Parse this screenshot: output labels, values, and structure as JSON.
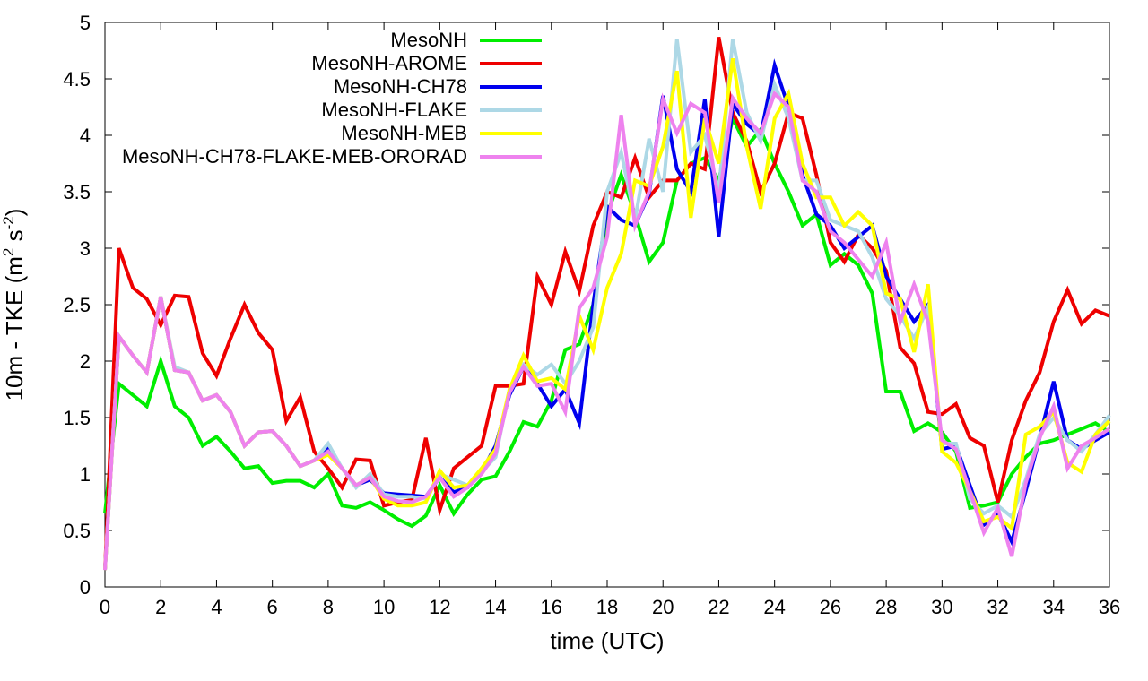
{
  "chart_data": {
    "type": "line",
    "title": "",
    "xlabel": "time (UTC)",
    "ylabel": "10m - TKE (m",
    "ylabel_unit_exp1": "2",
    "ylabel_unit_mid": " s",
    "ylabel_unit_exp2": "-2",
    "ylabel_close": ")",
    "xlim": [
      0,
      36
    ],
    "ylim": [
      0,
      5
    ],
    "xticks": [
      0,
      2,
      4,
      6,
      8,
      10,
      12,
      14,
      16,
      18,
      20,
      22,
      24,
      26,
      28,
      30,
      32,
      34,
      36
    ],
    "xtick_labels": [
      "0",
      "2",
      "4",
      "6",
      "8",
      "10",
      "12",
      "14",
      "16",
      "18",
      "20",
      "22",
      "24",
      "26",
      "28",
      "30",
      "32",
      "34",
      "36"
    ],
    "yticks": [
      0,
      0.5,
      1,
      1.5,
      2,
      2.5,
      3,
      3.5,
      4,
      4.5,
      5
    ],
    "ytick_labels": [
      "0",
      "0.5",
      "1",
      "1.5",
      "2",
      "2.5",
      "3",
      "3.5",
      "4",
      "4.5",
      "5"
    ],
    "grid": false,
    "legend_position": "top-left",
    "x": [
      0,
      0.5,
      1,
      1.5,
      2,
      2.5,
      3,
      3.5,
      4,
      4.5,
      5,
      5.5,
      6,
      6.5,
      7,
      7.5,
      8,
      8.5,
      9,
      9.5,
      10,
      10.5,
      11,
      11.5,
      12,
      12.5,
      13,
      13.5,
      14,
      14.5,
      15,
      15.5,
      16,
      16.5,
      17,
      17.5,
      18,
      18.5,
      19,
      19.5,
      20,
      20.5,
      21,
      21.5,
      22,
      22.5,
      23,
      23.5,
      24,
      24.5,
      25,
      25.5,
      26,
      26.5,
      27,
      27.5,
      28,
      28.5,
      29,
      29.5,
      30,
      30.5,
      31,
      31.5,
      32,
      32.5,
      33,
      33.5,
      34,
      34.5,
      35,
      35.5,
      36
    ],
    "series": [
      {
        "name": "MesoNH",
        "color": "#00ee00",
        "values": [
          0.65,
          1.8,
          1.7,
          1.6,
          2.0,
          1.6,
          1.5,
          1.25,
          1.33,
          1.2,
          1.05,
          1.07,
          0.92,
          0.94,
          0.94,
          0.88,
          1.0,
          0.72,
          0.7,
          0.75,
          0.68,
          0.6,
          0.54,
          0.63,
          0.9,
          0.65,
          0.82,
          0.95,
          0.98,
          1.2,
          1.46,
          1.42,
          1.65,
          2.1,
          2.15,
          2.5,
          3.3,
          3.65,
          3.3,
          2.88,
          3.05,
          3.6,
          3.75,
          3.8,
          3.6,
          4.15,
          3.9,
          4.05,
          3.75,
          3.5,
          3.2,
          3.3,
          2.85,
          2.95,
          2.85,
          2.6,
          1.73,
          1.73,
          1.38,
          1.45,
          1.37,
          1.2,
          0.7,
          0.72,
          0.75,
          1.0,
          1.15,
          1.27,
          1.3,
          1.35,
          1.4,
          1.45,
          1.37
        ]
      },
      {
        "name": "MesoNH-AROME",
        "color": "#ee0000",
        "values": [
          0.15,
          3.0,
          2.65,
          2.55,
          2.32,
          2.58,
          2.57,
          2.07,
          1.87,
          2.2,
          2.5,
          2.25,
          2.1,
          1.47,
          1.68,
          1.2,
          1.05,
          0.88,
          1.13,
          1.12,
          0.72,
          0.75,
          0.77,
          1.32,
          0.68,
          1.05,
          1.15,
          1.25,
          1.78,
          1.78,
          1.8,
          2.75,
          2.5,
          2.97,
          2.62,
          3.2,
          3.5,
          3.45,
          3.8,
          3.45,
          3.6,
          3.6,
          3.75,
          3.7,
          4.87,
          4.2,
          3.95,
          3.5,
          3.75,
          4.2,
          4.15,
          3.65,
          3.05,
          2.88,
          3.12,
          3.0,
          2.8,
          2.12,
          1.98,
          1.55,
          1.53,
          1.62,
          1.32,
          1.25,
          0.75,
          1.3,
          1.65,
          1.9,
          2.35,
          2.63,
          2.33,
          2.45,
          2.4
        ]
      },
      {
        "name": "MesoNH-CH78",
        "color": "#0000ee",
        "values": [
          0.15,
          2.22,
          2.05,
          1.9,
          2.57,
          1.92,
          1.9,
          1.65,
          1.7,
          1.55,
          1.25,
          1.37,
          1.38,
          1.25,
          1.07,
          1.12,
          1.23,
          1.05,
          0.9,
          0.95,
          0.83,
          0.82,
          0.81,
          0.8,
          0.97,
          0.84,
          0.88,
          1.02,
          1.25,
          1.7,
          1.95,
          1.8,
          1.6,
          1.75,
          1.45,
          2.5,
          3.37,
          3.25,
          3.2,
          3.48,
          4.35,
          3.7,
          3.5,
          4.32,
          3.1,
          4.28,
          4.1,
          4.0,
          4.62,
          4.25,
          3.65,
          3.3,
          3.2,
          3.0,
          3.1,
          3.2,
          2.75,
          2.55,
          2.35,
          2.5,
          1.22,
          1.25,
          0.9,
          0.55,
          0.65,
          0.4,
          0.85,
          1.32,
          1.82,
          1.3,
          1.22,
          1.3,
          1.37
        ]
      },
      {
        "name": "MesoNH-FLAKE",
        "color": "#add8e6",
        "values": [
          0.15,
          2.22,
          2.05,
          1.9,
          2.57,
          1.95,
          1.9,
          1.65,
          1.7,
          1.55,
          1.25,
          1.37,
          1.38,
          1.25,
          1.07,
          1.12,
          1.27,
          1.05,
          0.88,
          1.0,
          0.82,
          0.8,
          0.8,
          0.78,
          1.0,
          0.95,
          0.9,
          1.02,
          1.15,
          1.75,
          1.97,
          1.88,
          1.97,
          1.8,
          2.0,
          2.3,
          3.5,
          3.85,
          3.25,
          3.97,
          3.5,
          4.85,
          3.85,
          4.0,
          3.5,
          4.85,
          4.2,
          3.95,
          4.45,
          4.15,
          3.6,
          3.6,
          3.25,
          3.2,
          3.15,
          2.92,
          2.55,
          2.4,
          2.2,
          2.48,
          1.27,
          1.27,
          0.78,
          0.65,
          0.72,
          0.62,
          0.95,
          1.35,
          1.5,
          1.3,
          1.2,
          1.35,
          1.52
        ]
      },
      {
        "name": "MesoNH-MEB",
        "color": "#ffff00",
        "values": [
          0.15,
          2.22,
          2.05,
          1.9,
          2.57,
          1.92,
          1.9,
          1.65,
          1.7,
          1.55,
          1.25,
          1.37,
          1.38,
          1.25,
          1.07,
          1.12,
          1.17,
          1.05,
          0.9,
          0.97,
          0.78,
          0.72,
          0.72,
          0.75,
          1.03,
          0.88,
          0.9,
          1.05,
          1.22,
          1.75,
          2.05,
          1.82,
          1.85,
          1.75,
          2.4,
          2.1,
          2.65,
          2.95,
          3.6,
          3.55,
          3.9,
          4.57,
          3.27,
          4.15,
          3.75,
          4.68,
          3.9,
          3.35,
          4.15,
          4.37,
          3.75,
          3.45,
          3.45,
          3.2,
          3.32,
          3.2,
          2.6,
          2.55,
          2.08,
          2.68,
          1.2,
          1.1,
          0.85,
          0.58,
          0.62,
          0.52,
          1.35,
          1.42,
          1.55,
          1.1,
          1.02,
          1.35,
          1.47
        ]
      },
      {
        "name": "MesoNH-CH78-FLAKE-MEB-ORORAD",
        "color": "#ee82ee",
        "values": [
          0.15,
          2.22,
          2.05,
          1.9,
          2.57,
          1.92,
          1.9,
          1.65,
          1.7,
          1.55,
          1.25,
          1.37,
          1.38,
          1.25,
          1.07,
          1.12,
          1.2,
          1.05,
          0.9,
          0.97,
          0.8,
          0.76,
          0.75,
          0.8,
          0.97,
          0.8,
          0.88,
          1.0,
          1.18,
          1.72,
          1.95,
          1.78,
          1.8,
          1.55,
          2.47,
          2.65,
          3.1,
          4.18,
          3.2,
          3.5,
          4.32,
          4.02,
          4.28,
          4.2,
          3.4,
          4.33,
          4.15,
          4.02,
          4.37,
          4.25,
          3.6,
          3.5,
          3.15,
          3.05,
          2.9,
          2.75,
          3.05,
          2.35,
          2.68,
          2.35,
          1.3,
          1.22,
          0.85,
          0.48,
          0.7,
          0.27,
          0.92,
          1.32,
          1.6,
          1.05,
          1.25,
          1.32,
          1.4
        ]
      }
    ]
  }
}
